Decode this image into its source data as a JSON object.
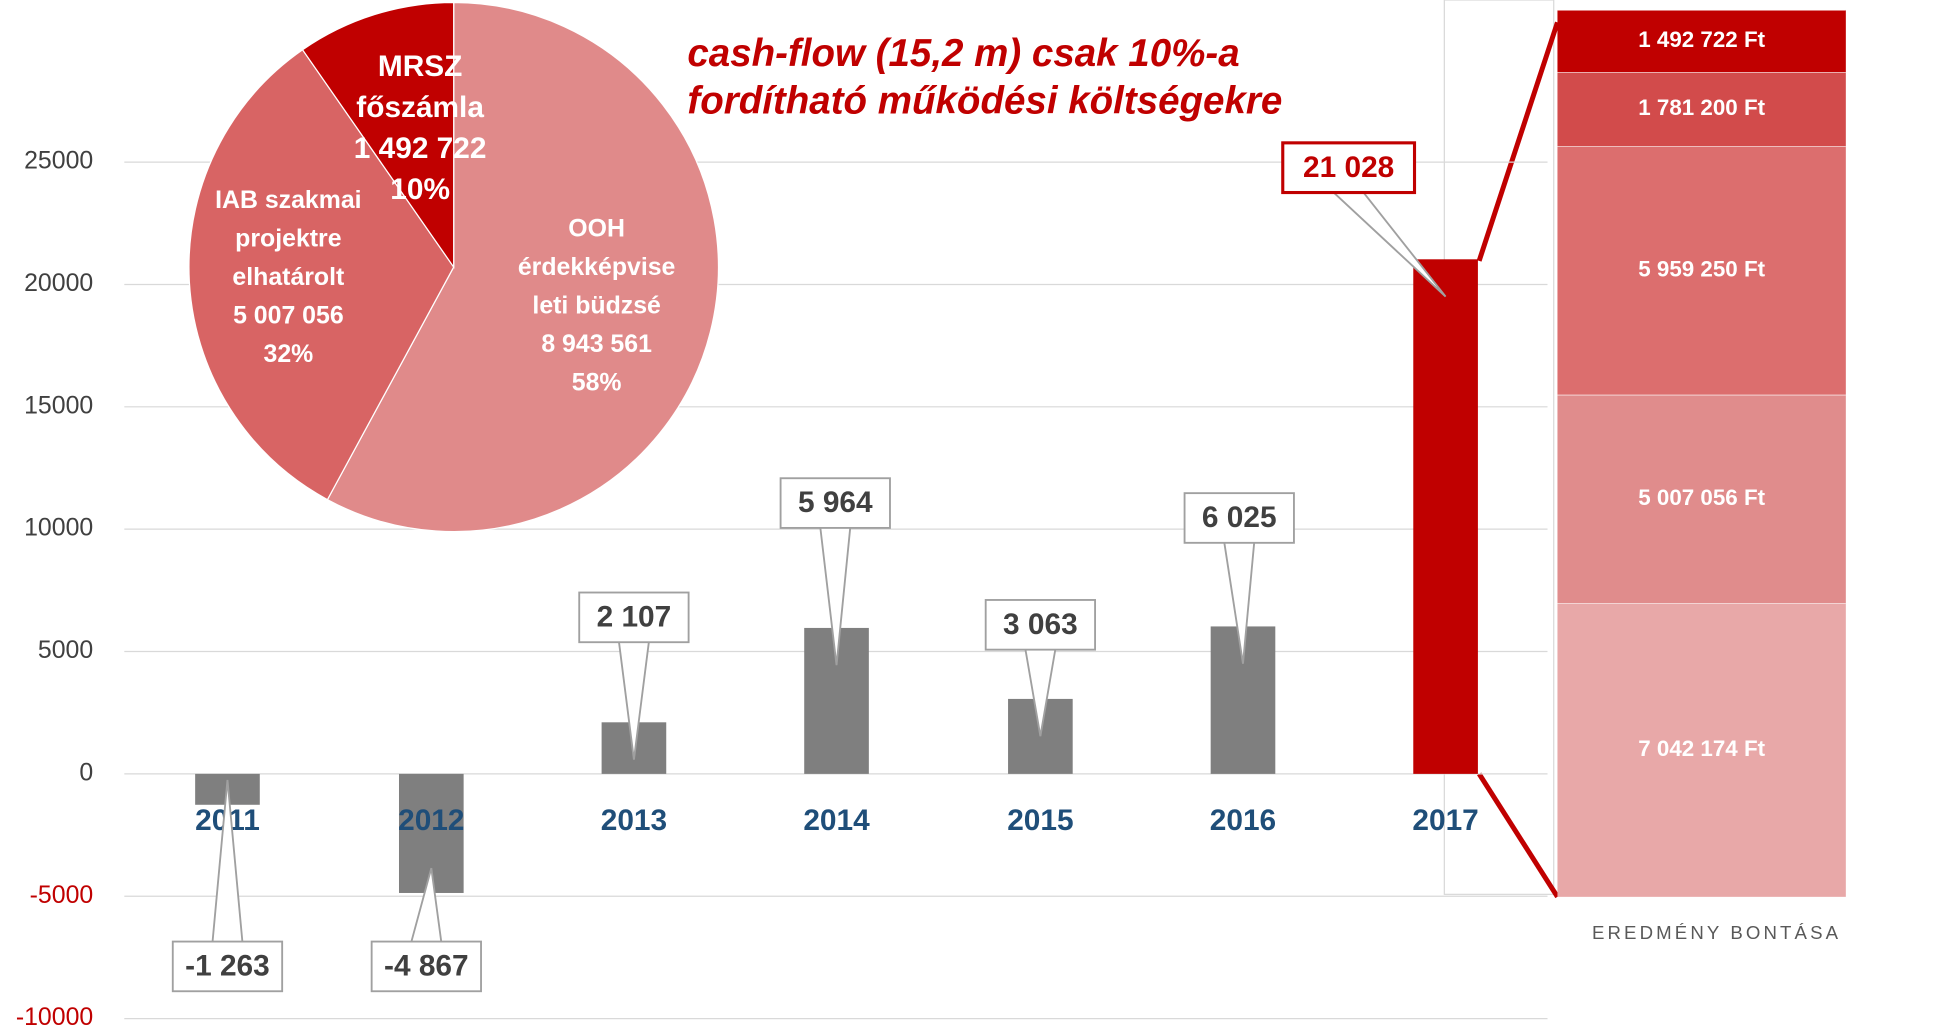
{
  "chart_data": [
    {
      "type": "bar",
      "title_lines": [
        "cash-flow (15,2 m) csak 10%-a",
        "fordítható működési költségekre"
      ],
      "categories": [
        "2011",
        "2012",
        "2013",
        "2014",
        "2015",
        "2016",
        "2017"
      ],
      "values": [
        -1263,
        -4867,
        2107,
        5964,
        3063,
        6025,
        21028
      ],
      "value_labels": [
        "-1 263",
        "-4 867",
        "2 107",
        "5 964",
        "3 063",
        "6 025",
        "21 028"
      ],
      "colors": [
        "#7f7f7f",
        "#7f7f7f",
        "#7f7f7f",
        "#7f7f7f",
        "#7f7f7f",
        "#7f7f7f",
        "#c00000"
      ],
      "ylim": [
        -10000,
        25000
      ],
      "yticks": [
        -10000,
        -5000,
        0,
        5000,
        10000,
        15000,
        20000,
        25000
      ],
      "grid": true
    },
    {
      "type": "pie",
      "labels": [
        [
          "OOH",
          "érdekképvise",
          "leti büdzsé"
        ],
        [
          "IAB szakmai",
          "projektre",
          "elhatárolt"
        ],
        [
          "MRSZ",
          "főszámla"
        ]
      ],
      "values": [
        8943561,
        5007056,
        1492722
      ],
      "value_labels": [
        "8 943 561",
        "5 007 056",
        "1 492 722"
      ],
      "percents": [
        58,
        32,
        10
      ],
      "percent_labels": [
        "58%",
        "32%",
        "10%"
      ],
      "colors": [
        "#e08a8a",
        "#d86464",
        "#c00000"
      ]
    },
    {
      "type": "stacked_bar",
      "xlabel": "EREDMÉNY BONTÁSA",
      "ylim": [
        0,
        21282402
      ],
      "series": [
        {
          "color": "#e8a8a8",
          "values": [
            7042174
          ],
          "value_labels": [
            "7 042 174 Ft"
          ]
        },
        {
          "color": "#e08c8c",
          "values": [
            5007056
          ],
          "value_labels": [
            "5 007 056 Ft"
          ]
        },
        {
          "color": "#dc6e6e",
          "values": [
            5959250
          ],
          "value_labels": [
            "5 959 250 Ft"
          ]
        },
        {
          "color": "#d24b4b",
          "values": [
            1781200
          ],
          "value_labels": [
            "1 781 200 Ft"
          ]
        },
        {
          "color": "#c00000",
          "values": [
            1492722
          ],
          "value_labels": [
            "1 492 722 Ft"
          ]
        }
      ]
    }
  ]
}
